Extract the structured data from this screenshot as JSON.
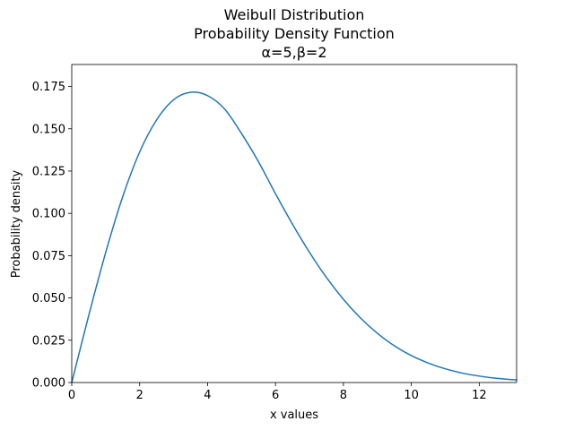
{
  "chart_data": {
    "type": "line",
    "title_lines": [
      "Weibull Distribution",
      "Probability Density Function",
      "α=5,β=2"
    ],
    "xlabel": "x values",
    "ylabel": "Probability density",
    "xlim": [
      0,
      13.1
    ],
    "ylim": [
      0,
      0.188
    ],
    "x_ticks": [
      0,
      2,
      4,
      6,
      8,
      10,
      12
    ],
    "x_tick_labels": [
      "0",
      "2",
      "4",
      "6",
      "8",
      "10",
      "12"
    ],
    "y_ticks": [
      0.0,
      0.025,
      0.05,
      0.075,
      0.1,
      0.125,
      0.15,
      0.175
    ],
    "y_tick_labels": [
      "0.000",
      "0.025",
      "0.050",
      "0.075",
      "0.100",
      "0.125",
      "0.150",
      "0.175"
    ],
    "grid": false,
    "legend": "none",
    "series": [
      {
        "color": "#1f77b4",
        "x": [
          0,
          0.5,
          1,
          1.5,
          2,
          2.5,
          3,
          3.5,
          4,
          4.5,
          5,
          5.5,
          6,
          6.5,
          7,
          7.5,
          8,
          8.5,
          9,
          9.5,
          10,
          10.5,
          11,
          11.5,
          12,
          12.5,
          13,
          13.1
        ],
        "y": [
          0.0,
          0.0396,
          0.0769,
          0.1098,
          0.1363,
          0.1553,
          0.1672,
          0.1716,
          0.1696,
          0.1617,
          0.1472,
          0.1305,
          0.1116,
          0.0936,
          0.077,
          0.0621,
          0.0492,
          0.0382,
          0.0291,
          0.0217,
          0.0159,
          0.0115,
          0.0081,
          0.0056,
          0.0038,
          0.0025,
          0.0017,
          0.0015
        ]
      }
    ]
  }
}
